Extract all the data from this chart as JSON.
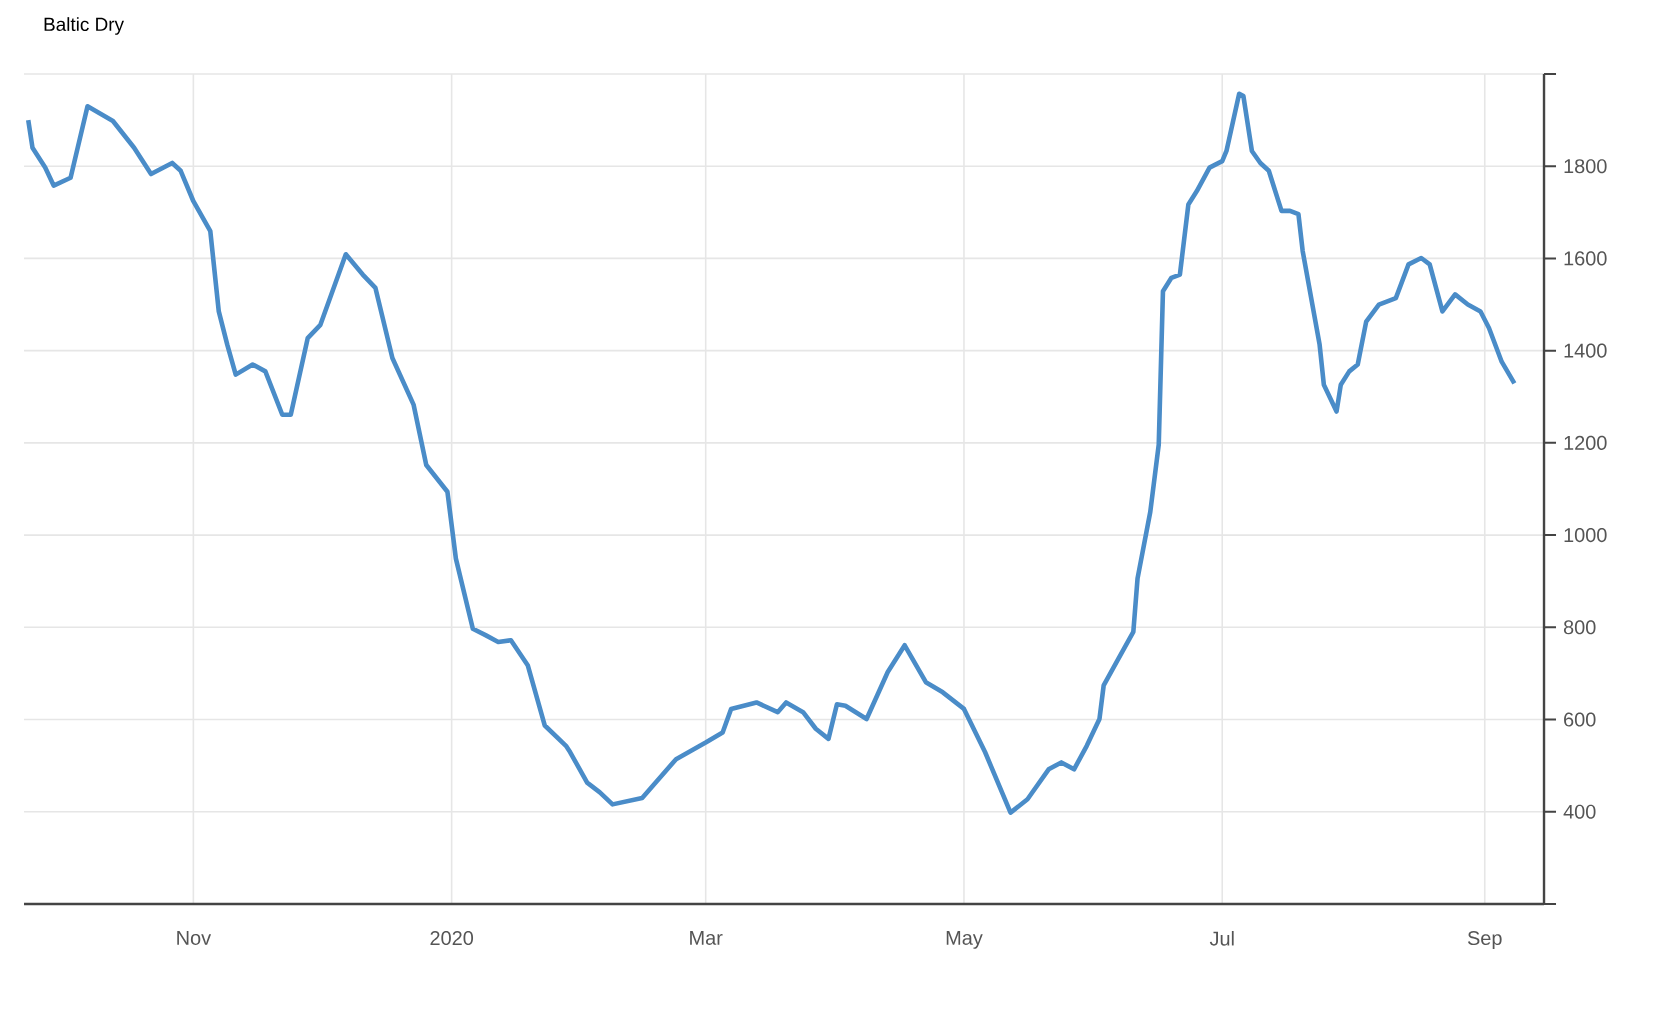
{
  "chart_data": {
    "type": "line",
    "title": "Baltic Dry",
    "x": [
      "2019-09-23",
      "2019-09-24",
      "2019-09-27",
      "2019-09-29",
      "2019-10-03",
      "2019-10-07",
      "2019-10-13",
      "2019-10-18",
      "2019-10-22",
      "2019-10-27",
      "2019-10-29",
      "2019-11-01",
      "2019-11-05",
      "2019-11-07",
      "2019-11-09",
      "2019-11-11",
      "2019-11-15",
      "2019-11-18",
      "2019-11-22",
      "2019-11-24",
      "2019-11-28",
      "2019-12-01",
      "2019-12-07",
      "2019-12-11",
      "2019-12-14",
      "2019-12-18",
      "2019-12-23",
      "2019-12-26",
      "2019-12-31",
      "2020-01-02",
      "2020-01-06",
      "2020-01-09",
      "2020-01-12",
      "2020-01-15",
      "2020-01-19",
      "2020-01-23",
      "2020-01-28",
      "2020-01-29",
      "2020-02-02",
      "2020-02-05",
      "2020-02-08",
      "2020-02-15",
      "2020-02-23",
      "2020-03-01",
      "2020-03-05",
      "2020-03-07",
      "2020-03-13",
      "2020-03-18",
      "2020-03-20",
      "2020-03-24",
      "2020-03-27",
      "2020-03-30",
      "2020-04-01",
      "2020-04-03",
      "2020-04-08",
      "2020-04-13",
      "2020-04-17",
      "2020-04-22",
      "2020-04-26",
      "2020-05-01",
      "2020-05-06",
      "2020-05-12",
      "2020-05-16",
      "2020-05-21",
      "2020-05-24",
      "2020-05-27",
      "2020-05-30",
      "2020-06-02",
      "2020-06-03",
      "2020-06-06",
      "2020-06-10",
      "2020-06-11",
      "2020-06-14",
      "2020-06-16",
      "2020-06-17",
      "2020-06-19",
      "2020-06-21",
      "2020-06-23",
      "2020-06-25",
      "2020-06-28",
      "2020-07-01",
      "2020-07-02",
      "2020-07-05",
      "2020-07-06",
      "2020-07-08",
      "2020-07-10",
      "2020-07-12",
      "2020-07-15",
      "2020-07-17",
      "2020-07-19",
      "2020-07-20",
      "2020-07-24",
      "2020-07-25",
      "2020-07-28",
      "2020-07-29",
      "2020-07-31",
      "2020-08-02",
      "2020-08-04",
      "2020-08-07",
      "2020-08-11",
      "2020-08-14",
      "2020-08-17",
      "2020-08-19",
      "2020-08-22",
      "2020-08-25",
      "2020-08-28",
      "2020-08-31",
      "2020-09-02",
      "2020-09-05",
      "2020-09-08"
    ],
    "series": [
      {
        "color": "#4a8cc8",
        "values": [
          1900,
          1840,
          1797,
          1758,
          1775,
          1930,
          1898,
          1840,
          1783,
          1807,
          1790,
          1724,
          1659,
          1485,
          1413,
          1348,
          1370,
          1355,
          1261,
          1261,
          1427,
          1456,
          1609,
          1565,
          1536,
          1384,
          1283,
          1152,
          1094,
          949,
          797,
          783,
          768,
          772,
          717,
          587,
          543,
          529,
          463,
          442,
          416,
          430,
          514,
          550,
          572,
          623,
          637,
          616,
          637,
          616,
          580,
          558,
          633,
          630,
          601,
          703,
          761,
          681,
          659,
          623,
          529,
          398,
          427,
          492,
          507,
          492,
          543,
          601,
          674,
          724,
          790,
          906,
          1050,
          1196,
          1529,
          1558,
          1565,
          1717,
          1746,
          1797,
          1811,
          1833,
          1957,
          1952,
          1833,
          1807,
          1790,
          1703,
          1703,
          1696,
          1616,
          1413,
          1326,
          1268,
          1326,
          1355,
          1370,
          1463,
          1500,
          1514,
          1587,
          1601,
          1587,
          1485,
          1522,
          1500,
          1485,
          1449,
          1376,
          1329
        ]
      }
    ],
    "xlim": [
      "2019-09-22",
      "2020-09-15"
    ],
    "xticks": [
      {
        "value": "2019-11-01",
        "label": "Nov"
      },
      {
        "value": "2020-01-01",
        "label": "2020"
      },
      {
        "value": "2020-03-01",
        "label": "Mar"
      },
      {
        "value": "2020-05-01",
        "label": "May"
      },
      {
        "value": "2020-07-01",
        "label": "Jul"
      },
      {
        "value": "2020-09-01",
        "label": "Sep"
      }
    ],
    "ylim": [
      200,
      2000
    ],
    "yticks": [
      {
        "value": 200,
        "label": null
      },
      400,
      600,
      800,
      1000,
      1200,
      1400,
      1600,
      1800,
      {
        "value": 2000,
        "label": null
      }
    ],
    "grid": true,
    "marker": "none",
    "line_style": "solid"
  }
}
